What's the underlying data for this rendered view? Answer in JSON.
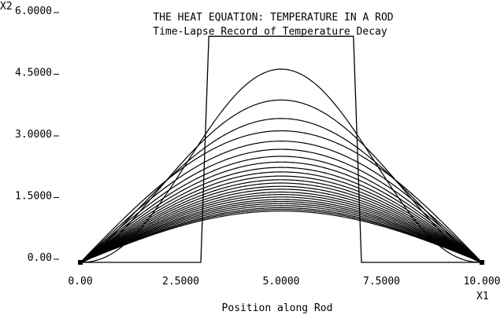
{
  "chart_data": {
    "type": "line",
    "title": "THE HEAT EQUATION: TEMPERATURE IN A ROD",
    "subtitle": "Time-Lapse Record of Temperature Decay",
    "xlabel": "Position along Rod",
    "ylabel": "",
    "x_axis_name": "X1",
    "y_axis_name": "X2",
    "xlim": [
      0,
      10
    ],
    "ylim": [
      0,
      6
    ],
    "x_ticks": [
      {
        "value": 0,
        "label": "0.00"
      },
      {
        "value": 2.5,
        "label": "2.5000"
      },
      {
        "value": 5,
        "label": "5.0000"
      },
      {
        "value": 7.5,
        "label": "7.5000"
      },
      {
        "value": 10,
        "label": "10.000"
      }
    ],
    "y_ticks": [
      {
        "value": 0,
        "label": "0.00"
      },
      {
        "value": 1.5,
        "label": "1.5000"
      },
      {
        "value": 3,
        "label": "3.0000"
      },
      {
        "value": 4.5,
        "label": "4.5000"
      },
      {
        "value": 6,
        "label": "6.0000"
      }
    ],
    "grid": false,
    "legend": "none",
    "line_color": "#000000",
    "initial_profile": {
      "x": [
        0,
        3.0,
        3.2,
        6.8,
        7.0,
        10
      ],
      "y": [
        0,
        0,
        5.5,
        5.5,
        0,
        0
      ]
    },
    "decay_curves": {
      "x_range": [
        0,
        10
      ],
      "peaks": [
        4.7,
        3.95,
        3.5,
        3.2,
        2.95,
        2.75,
        2.58,
        2.44,
        2.31,
        2.2,
        2.1,
        2.01,
        1.93,
        1.85,
        1.78,
        1.71,
        1.65,
        1.59,
        1.53,
        1.48,
        1.43,
        1.38,
        1.33,
        1.29,
        1.25
      ]
    }
  }
}
